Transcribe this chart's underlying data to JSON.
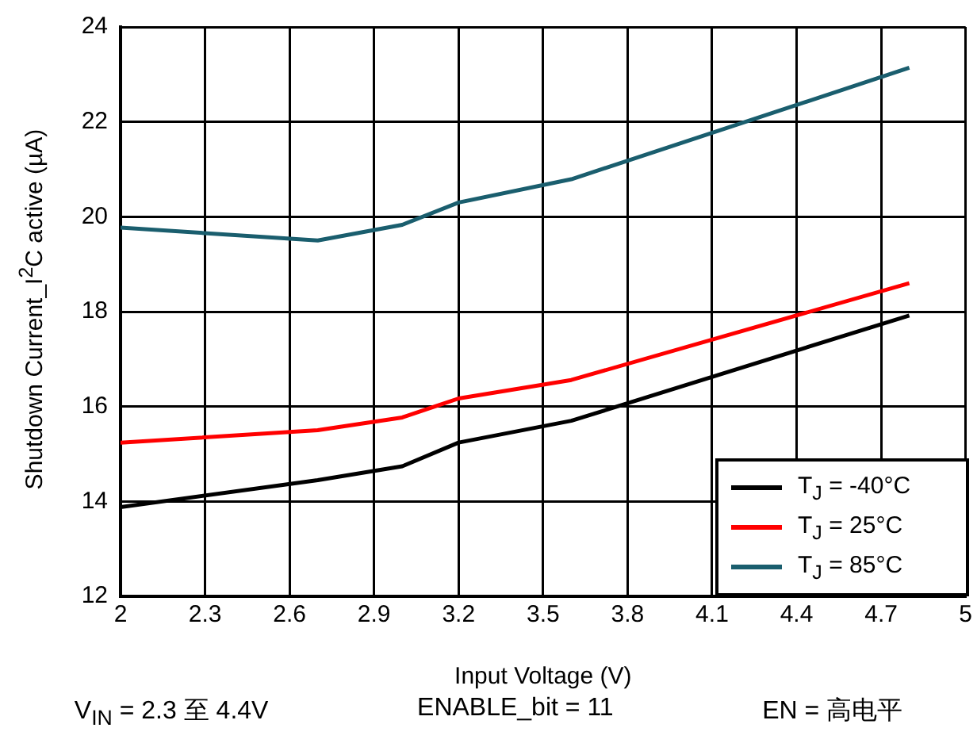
{
  "chart_data": {
    "type": "line",
    "xlabel": "Input Voltage (V)",
    "ylabel": "Shutdown Current_I$^{2}$C active (µA)",
    "xlim": [
      2,
      5
    ],
    "xticks": [
      2,
      2.3,
      2.6,
      2.9,
      3.2,
      3.5,
      3.8,
      4.1,
      4.4,
      4.7,
      5
    ],
    "ylim": [
      12,
      24
    ],
    "yticks": [
      12,
      14,
      16,
      18,
      20,
      22,
      24
    ],
    "grid": true,
    "legend": "bottom right",
    "marker": "none",
    "line_style": "solid",
    "x": [
      2,
      2.7,
      3.0,
      3.2,
      3.6,
      4.8
    ],
    "series": [
      {
        "name": "T$_{J}$ = -40°C",
        "color": "#000000",
        "values": [
          13.88,
          14.45,
          14.74,
          15.24,
          15.7,
          17.92
        ]
      },
      {
        "name": "T$_{J}$ = 25°C",
        "color": "#ff0000",
        "values": [
          15.24,
          15.5,
          15.77,
          16.17,
          16.56,
          18.6
        ]
      },
      {
        "name": "T$_{J}$ = 85°C",
        "color": "#1a5e6e",
        "values": [
          19.77,
          19.5,
          19.83,
          20.3,
          20.79,
          23.14
        ]
      }
    ],
    "annotations": [
      "V$_{IN}$ = 2.3 至 4.4V",
      "ENABLE_bit = 11",
      "EN = 高电平"
    ]
  }
}
